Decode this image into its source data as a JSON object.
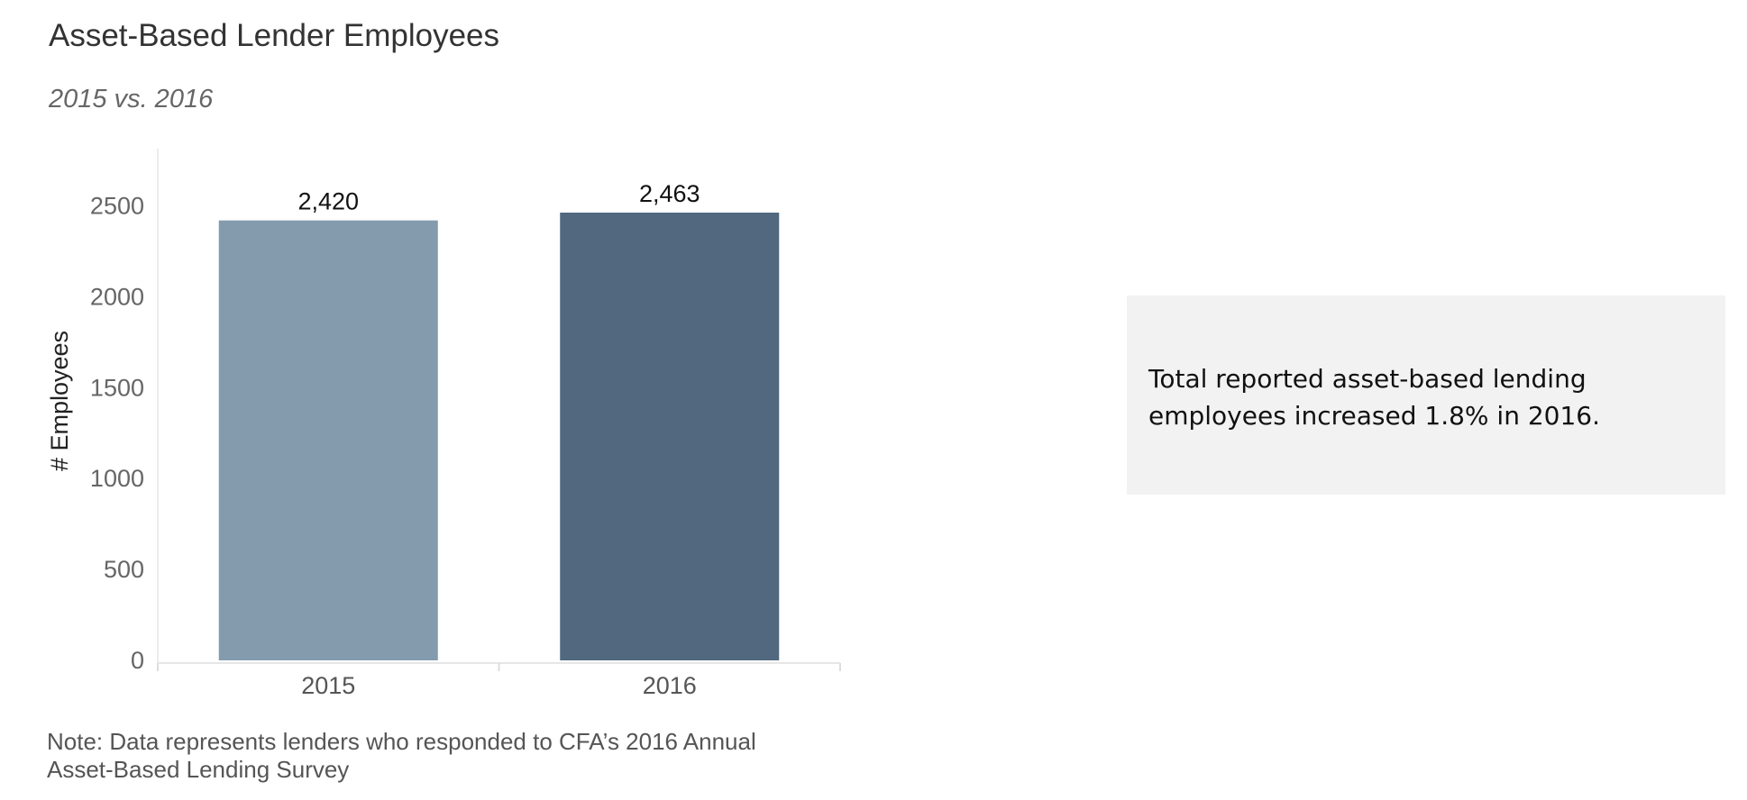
{
  "header": {
    "title": "Asset-Based Lender Employees",
    "subtitle": "2015 vs. 2016"
  },
  "chart_data": {
    "type": "bar",
    "categories": [
      "2015",
      "2016"
    ],
    "values": [
      2420,
      2463
    ],
    "data_labels": [
      "2,420",
      "2,463"
    ],
    "colors": [
      "#849bae",
      "#51687e"
    ],
    "title": "",
    "xlabel": "",
    "ylabel": "# Employees",
    "ylim": [
      0,
      2800
    ],
    "yticks": [
      0,
      500,
      1000,
      1500,
      2000,
      2500
    ],
    "grid": false,
    "legend": "none"
  },
  "note": {
    "line1": "Note: Data represents lenders who responded to CFA’s 2016 Annual",
    "line2": "Asset-Based Lending Survey"
  },
  "callout": {
    "text": "Total reported asset-based lending employees increased 1.8% in 2016."
  }
}
